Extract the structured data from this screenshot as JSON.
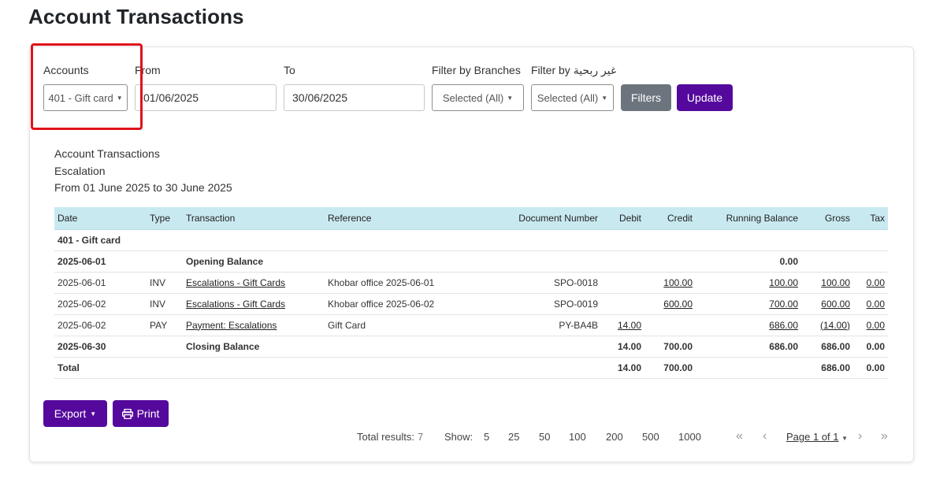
{
  "page": {
    "title": "Account Transactions"
  },
  "filters": {
    "accounts_label": "Accounts",
    "accounts_value": "401 - Gift card",
    "from_label": "From",
    "from_value": "01/06/2025",
    "to_label": "To",
    "to_value": "30/06/2025",
    "branches_label": "Filter by Branches",
    "branches_value": "Selected (All)",
    "nonprofit_label": "Filter by غير ربحية",
    "nonprofit_value": "Selected (All)",
    "filters_button": "Filters",
    "update_button": "Update"
  },
  "report": {
    "title": "Account Transactions",
    "company": "Escalation",
    "period": "From 01 June 2025 to 30 June 2025"
  },
  "table": {
    "headers": {
      "date": "Date",
      "type": "Type",
      "transaction": "Transaction",
      "reference": "Reference",
      "doc": "Document Number",
      "debit": "Debit",
      "credit": "Credit",
      "balance": "Running Balance",
      "gross": "Gross",
      "tax": "Tax"
    },
    "group_label": "401 - Gift card",
    "opening": {
      "date": "2025-06-01",
      "label": "Opening Balance",
      "balance": "0.00"
    },
    "rows": [
      {
        "date": "2025-06-01",
        "type": "INV",
        "transaction": "Escalations - Gift Cards",
        "reference": "Khobar office 2025-06-01",
        "doc": "SPO-0018",
        "debit": "",
        "credit": "100.00",
        "balance": "100.00",
        "gross": "100.00",
        "tax": "0.00"
      },
      {
        "date": "2025-06-02",
        "type": "INV",
        "transaction": "Escalations - Gift Cards",
        "reference": "Khobar office 2025-06-02",
        "doc": "SPO-0019",
        "debit": "",
        "credit": "600.00",
        "balance": "700.00",
        "gross": "600.00",
        "tax": "0.00"
      },
      {
        "date": "2025-06-02",
        "type": "PAY",
        "transaction": "Payment: Escalations",
        "reference": "Gift Card",
        "doc": "PY-BA4B",
        "debit": "14.00",
        "credit": "",
        "balance": "686.00",
        "gross": "(14.00)",
        "tax": "0.00"
      }
    ],
    "closing": {
      "date": "2025-06-30",
      "label": "Closing Balance",
      "debit": "14.00",
      "credit": "700.00",
      "balance": "686.00",
      "gross": "686.00",
      "tax": "0.00"
    },
    "total": {
      "label": "Total",
      "debit": "14.00",
      "credit": "700.00",
      "gross": "686.00",
      "tax": "0.00"
    }
  },
  "actions": {
    "export": "Export",
    "print": "Print"
  },
  "pagination": {
    "total_label": "Total results:",
    "total_value": "7",
    "show_label": "Show:",
    "sizes": [
      "5",
      "25",
      "50",
      "100",
      "200",
      "500",
      "1000"
    ],
    "selected_size": "200",
    "page_label": "Page 1 of 1"
  },
  "colors": {
    "primary": "#55099c",
    "secondary": "#6c757d",
    "header_bg": "#c9e9f1",
    "highlight": "#e0121b"
  }
}
